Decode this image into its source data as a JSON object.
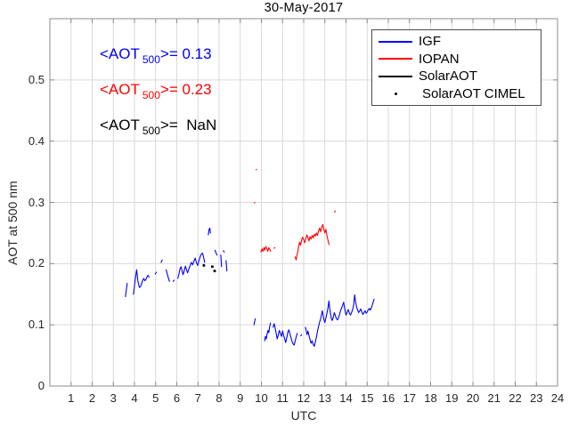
{
  "title": "30-May-2017",
  "xlabel": "UTC",
  "ylabel": "AOT at 500 nm",
  "annotations": [
    {
      "name": "igf-mean-aot",
      "pre": "<AOT",
      "sub": "500",
      "post": ">= 0.13",
      "color": "#0000FF"
    },
    {
      "name": "iopan-mean-aot",
      "pre": "<AOT",
      "sub": "500",
      "post": ">= 0.23",
      "color": "#FF0000"
    },
    {
      "name": "solaraot-mean-aot",
      "pre": "<AOT",
      "sub": "500",
      "post": ">=  NaN",
      "color": "#000000"
    }
  ],
  "legend": [
    {
      "label": "IGF",
      "color": "#0000FF",
      "marker": "line"
    },
    {
      "label": "IOPAN",
      "color": "#FF0000",
      "marker": "line"
    },
    {
      "label": "SolarAOT",
      "color": "#000000",
      "marker": "line"
    },
    {
      "label": "SolarAOT CIMEL",
      "color": "#000000",
      "marker": "dot"
    }
  ],
  "colors": {
    "grid": "#D9D9D9",
    "axis": "#8C8C8C",
    "tick_text": "#262626"
  },
  "chart_data": {
    "type": "line",
    "title": "30-May-2017",
    "xlabel": "UTC",
    "ylabel": "AOT at 500 nm",
    "xlim": [
      0,
      24
    ],
    "ylim": [
      0,
      0.6
    ],
    "x_ticks": [
      1,
      2,
      3,
      4,
      5,
      6,
      7,
      8,
      9,
      10,
      11,
      12,
      13,
      14,
      15,
      16,
      17,
      18,
      19,
      20,
      21,
      22,
      23,
      24
    ],
    "y_ticks": [
      0,
      0.1,
      0.2,
      0.3,
      0.4,
      0.5
    ],
    "grid": true,
    "legend_position": "northeast",
    "series": [
      {
        "name": "IGF",
        "color": "#0000FF",
        "style": "line",
        "segments": [
          [
            [
              3.57,
              0.146
            ],
            [
              3.6,
              0.153
            ],
            [
              3.63,
              0.161
            ],
            [
              3.66,
              0.168
            ]
          ],
          [
            [
              3.95,
              0.15
            ],
            [
              3.99,
              0.161
            ],
            [
              4.03,
              0.173
            ],
            [
              4.07,
              0.183
            ],
            [
              4.1,
              0.19
            ],
            [
              4.13,
              0.181
            ],
            [
              4.16,
              0.172
            ],
            [
              4.2,
              0.165
            ],
            [
              4.24,
              0.161
            ],
            [
              4.29,
              0.163
            ],
            [
              4.34,
              0.168
            ],
            [
              4.39,
              0.173
            ],
            [
              4.44,
              0.176
            ],
            [
              4.49,
              0.172
            ],
            [
              4.54,
              0.174
            ],
            [
              4.59,
              0.178
            ],
            [
              4.64,
              0.181
            ],
            [
              4.69,
              0.178
            ]
          ],
          [
            [
              4.98,
              0.183
            ],
            [
              5.03,
              0.186
            ]
          ],
          [
            [
              5.26,
              0.202
            ],
            [
              5.31,
              0.206
            ]
          ],
          [
            [
              5.5,
              0.19
            ],
            [
              5.55,
              0.183
            ],
            [
              5.6,
              0.177
            ],
            [
              5.65,
              0.171
            ]
          ],
          [
            [
              5.83,
              0.171
            ],
            [
              5.88,
              0.173
            ]
          ],
          [
            [
              6.05,
              0.176
            ],
            [
              6.1,
              0.183
            ],
            [
              6.15,
              0.191
            ],
            [
              6.2,
              0.195
            ],
            [
              6.25,
              0.188
            ],
            [
              6.3,
              0.182
            ],
            [
              6.36,
              0.19
            ],
            [
              6.41,
              0.196
            ],
            [
              6.46,
              0.19
            ],
            [
              6.51,
              0.185
            ],
            [
              6.57,
              0.191
            ],
            [
              6.63,
              0.197
            ],
            [
              6.69,
              0.202
            ],
            [
              6.75,
              0.198
            ],
            [
              6.81,
              0.204
            ],
            [
              6.87,
              0.209
            ],
            [
              6.93,
              0.201
            ],
            [
              6.99,
              0.197
            ],
            [
              7.05,
              0.205
            ],
            [
              7.11,
              0.212
            ],
            [
              7.17,
              0.216
            ],
            [
              7.22,
              0.217
            ],
            [
              7.27,
              0.21
            ],
            [
              7.32,
              0.202
            ]
          ],
          [
            [
              7.49,
              0.247
            ],
            [
              7.52,
              0.255
            ],
            [
              7.56,
              0.258
            ],
            [
              7.59,
              0.25
            ]
          ],
          [
            [
              7.8,
              0.222
            ],
            [
              7.85,
              0.218
            ],
            [
              7.9,
              0.214
            ]
          ],
          [
            [
              8.08,
              0.214
            ],
            [
              8.1,
              0.204
            ],
            [
              8.12,
              0.195
            ]
          ],
          [
            [
              8.2,
              0.221
            ],
            [
              8.25,
              0.219
            ]
          ],
          [
            [
              8.33,
              0.205
            ],
            [
              8.35,
              0.196
            ],
            [
              8.37,
              0.188
            ]
          ],
          [
            [
              9.65,
              0.1
            ],
            [
              9.68,
              0.105
            ],
            [
              9.71,
              0.11
            ]
          ],
          [
            [
              10.15,
              0.074
            ],
            [
              10.19,
              0.081
            ],
            [
              10.23,
              0.077
            ],
            [
              10.27,
              0.085
            ],
            [
              10.31,
              0.091
            ],
            [
              10.35,
              0.087
            ],
            [
              10.39,
              0.097
            ],
            [
              10.43,
              0.103
            ]
          ],
          [
            [
              10.55,
              0.096
            ],
            [
              10.6,
              0.102
            ],
            [
              10.65,
              0.095
            ],
            [
              10.7,
              0.086
            ],
            [
              10.75,
              0.077
            ],
            [
              10.8,
              0.084
            ],
            [
              10.85,
              0.091
            ],
            [
              10.9,
              0.086
            ],
            [
              10.95,
              0.081
            ],
            [
              11.0,
              0.09
            ],
            [
              11.05,
              0.083
            ],
            [
              11.1,
              0.077
            ],
            [
              11.15,
              0.071
            ],
            [
              11.2,
              0.079
            ],
            [
              11.25,
              0.088
            ],
            [
              11.3,
              0.092
            ],
            [
              11.35,
              0.085
            ],
            [
              11.4,
              0.079
            ],
            [
              11.45,
              0.073
            ],
            [
              11.5,
              0.069
            ],
            [
              11.55,
              0.067
            ],
            [
              11.6,
              0.074
            ],
            [
              11.65,
              0.081
            ],
            [
              11.7,
              0.086
            ]
          ],
          [
            [
              11.86,
              0.082
            ],
            [
              11.9,
              0.084
            ]
          ],
          [
            [
              12.08,
              0.096
            ],
            [
              12.12,
              0.09
            ],
            [
              12.16,
              0.084
            ],
            [
              12.2,
              0.09
            ],
            [
              12.25,
              0.083
            ],
            [
              12.3,
              0.076
            ],
            [
              12.35,
              0.07
            ],
            [
              12.4,
              0.074
            ],
            [
              12.45,
              0.068
            ],
            [
              12.5,
              0.065
            ],
            [
              12.55,
              0.072
            ],
            [
              12.6,
              0.08
            ],
            [
              12.65,
              0.089
            ],
            [
              12.7,
              0.097
            ],
            [
              12.75,
              0.104
            ],
            [
              12.8,
              0.11
            ],
            [
              12.85,
              0.118
            ],
            [
              12.88,
              0.123
            ],
            [
              12.92,
              0.115
            ],
            [
              12.96,
              0.108
            ],
            [
              13.0,
              0.104
            ],
            [
              13.05,
              0.111
            ],
            [
              13.1,
              0.119
            ],
            [
              13.15,
              0.128
            ],
            [
              13.19,
              0.139
            ],
            [
              13.23,
              0.127
            ],
            [
              13.27,
              0.117
            ],
            [
              13.31,
              0.11
            ],
            [
              13.35,
              0.107
            ],
            [
              13.4,
              0.113
            ],
            [
              13.45,
              0.12
            ],
            [
              13.5,
              0.115
            ],
            [
              13.55,
              0.11
            ],
            [
              13.6,
              0.108
            ],
            [
              13.65,
              0.112
            ],
            [
              13.7,
              0.118
            ],
            [
              13.75,
              0.124
            ],
            [
              13.8,
              0.128
            ],
            [
              13.85,
              0.133
            ],
            [
              13.89,
              0.137
            ],
            [
              13.93,
              0.128
            ],
            [
              13.97,
              0.12
            ],
            [
              14.01,
              0.116
            ],
            [
              14.06,
              0.121
            ],
            [
              14.11,
              0.125
            ],
            [
              14.16,
              0.119
            ],
            [
              14.21,
              0.116
            ],
            [
              14.26,
              0.12
            ],
            [
              14.31,
              0.125
            ],
            [
              14.36,
              0.131
            ],
            [
              14.41,
              0.149
            ],
            [
              14.45,
              0.138
            ],
            [
              14.5,
              0.129
            ],
            [
              14.55,
              0.124
            ],
            [
              14.6,
              0.12
            ],
            [
              14.65,
              0.123
            ],
            [
              14.7,
              0.126
            ],
            [
              14.75,
              0.121
            ],
            [
              14.8,
              0.117
            ],
            [
              14.85,
              0.12
            ],
            [
              14.9,
              0.123
            ],
            [
              14.95,
              0.119
            ],
            [
              15.0,
              0.121
            ],
            [
              15.05,
              0.124
            ],
            [
              15.1,
              0.127
            ],
            [
              15.15,
              0.124
            ],
            [
              15.2,
              0.128
            ],
            [
              15.25,
              0.133
            ],
            [
              15.3,
              0.139
            ],
            [
              15.33,
              0.142
            ]
          ]
        ]
      },
      {
        "name": "IOPAN",
        "color": "#FF0000",
        "style": "line",
        "segments": [
          [
            [
              9.67,
              0.299
            ],
            [
              9.69,
              0.3
            ]
          ],
          [
            [
              9.75,
              0.353
            ],
            [
              9.77,
              0.354
            ]
          ],
          [
            [
              9.98,
              0.219
            ],
            [
              10.03,
              0.224
            ],
            [
              10.07,
              0.22
            ],
            [
              10.12,
              0.226
            ],
            [
              10.16,
              0.222
            ],
            [
              10.21,
              0.228
            ],
            [
              10.26,
              0.224
            ],
            [
              10.3,
              0.22
            ],
            [
              10.35,
              0.226
            ],
            [
              10.4,
              0.223
            ],
            [
              10.44,
              0.22
            ]
          ],
          [
            [
              10.6,
              0.225
            ],
            [
              10.64,
              0.226
            ]
          ],
          [
            [
              11.6,
              0.211
            ],
            [
              11.64,
              0.206
            ],
            [
              11.68,
              0.213
            ],
            [
              11.72,
              0.22
            ],
            [
              11.76,
              0.228
            ],
            [
              11.8,
              0.235
            ],
            [
              11.85,
              0.23
            ],
            [
              11.9,
              0.238
            ],
            [
              11.95,
              0.243
            ],
            [
              12.0,
              0.239
            ],
            [
              12.05,
              0.234
            ],
            [
              12.1,
              0.241
            ],
            [
              12.15,
              0.247
            ],
            [
              12.2,
              0.242
            ],
            [
              12.25,
              0.237
            ],
            [
              12.3,
              0.244
            ],
            [
              12.35,
              0.24
            ],
            [
              12.4,
              0.246
            ],
            [
              12.45,
              0.242
            ],
            [
              12.5,
              0.248
            ],
            [
              12.55,
              0.245
            ],
            [
              12.6,
              0.25
            ],
            [
              12.65,
              0.246
            ],
            [
              12.7,
              0.253
            ],
            [
              12.75,
              0.258
            ],
            [
              12.8,
              0.252
            ],
            [
              12.85,
              0.259
            ],
            [
              12.9,
              0.264
            ],
            [
              12.95,
              0.256
            ],
            [
              13.0,
              0.25
            ],
            [
              13.05,
              0.256
            ],
            [
              13.1,
              0.246
            ],
            [
              13.15,
              0.238
            ],
            [
              13.2,
              0.231
            ]
          ],
          [
            [
              13.46,
              0.284
            ],
            [
              13.49,
              0.286
            ]
          ]
        ]
      },
      {
        "name": "SolarAOT",
        "color": "#000000",
        "style": "line",
        "segments": []
      },
      {
        "name": "SolarAOT CIMEL",
        "color": "#000000",
        "style": "scatter",
        "points": [
          [
            7.28,
            0.197
          ],
          [
            7.68,
            0.195
          ],
          [
            7.79,
            0.188
          ]
        ]
      }
    ]
  }
}
